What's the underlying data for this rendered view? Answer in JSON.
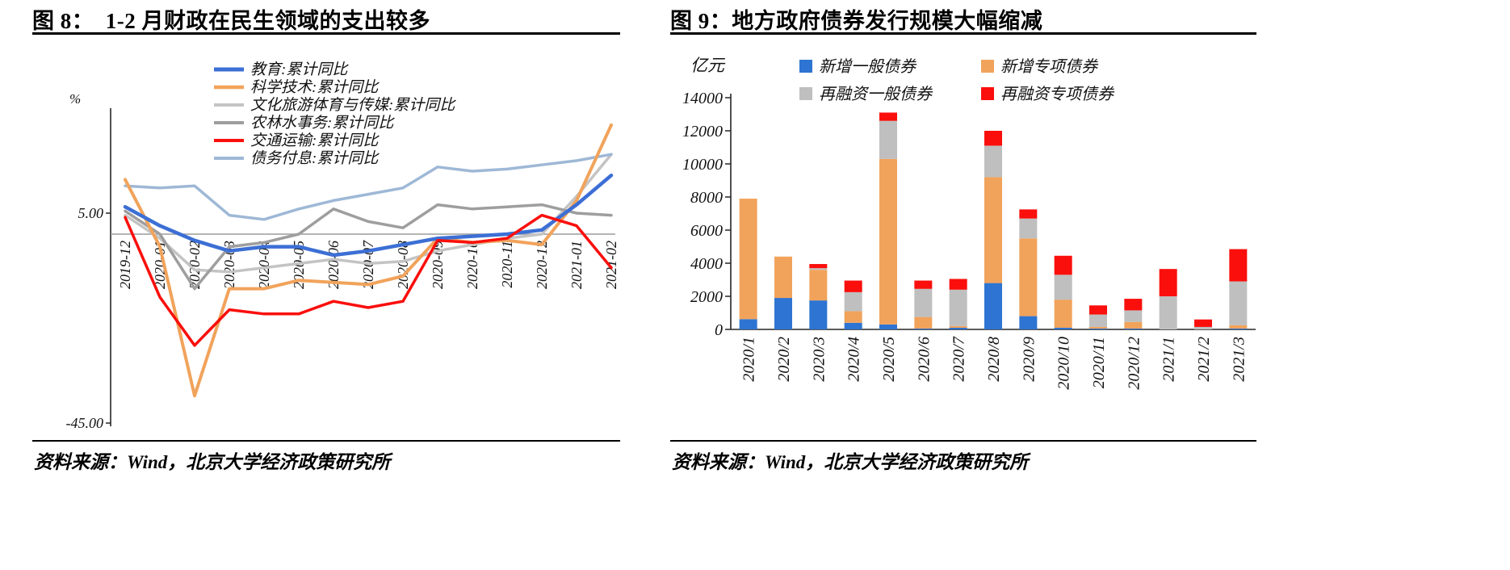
{
  "panels": {
    "left": {
      "title": "图 8：  1-2 月财政在民生领域的支出较多",
      "source": "资料来源：Wind，北京大学经济政策研究所"
    },
    "right": {
      "title": "图 9：地方政府债券发行规模大幅缩减",
      "source": "资料来源：Wind，北京大学经济政策研究所"
    }
  },
  "chart_data": [
    {
      "type": "line",
      "title": "1-2 月财政在民生领域的支出较多",
      "ylabel": "%",
      "ylim": [
        -45,
        30
      ],
      "grid": false,
      "legend_position": "top",
      "yticks": [
        {
          "label": "5.00",
          "value": 5
        },
        {
          "label": "-45.00",
          "value": -45
        }
      ],
      "x": [
        "2019-12",
        "2020-01",
        "2020-02",
        "2020-03",
        "2020-04",
        "2020-05",
        "2020-06",
        "2020-07",
        "2020-08",
        "2020-09",
        "2020-10",
        "2020-11",
        "2020-12",
        "2021-01",
        "2021-02"
      ],
      "draw_order": [
        2,
        3,
        5,
        1,
        0,
        4
      ],
      "series": [
        {
          "name": "教育:累计同比",
          "color": "#3C6FD5",
          "width": 4.5,
          "values": [
            6.5,
            2,
            -1.5,
            -4,
            -3,
            -3,
            -5,
            -4,
            -2.5,
            -1,
            -0.5,
            0,
            1,
            7,
            14
          ]
        },
        {
          "name": "科学技术:累计同比",
          "color": "#F1A35B",
          "width": 4,
          "values": [
            13,
            -3,
            -38.5,
            -13,
            -13,
            -11,
            -11.5,
            -12,
            -10,
            -1,
            -2,
            -1.5,
            -2.5,
            8,
            26
          ]
        },
        {
          "name": "文化旅游体育与传媒:累计同比",
          "color": "#C4C4C4",
          "width": 3.5,
          "values": [
            4.5,
            -1,
            -8.5,
            -9,
            -8,
            -7,
            -6,
            -7,
            -6.5,
            -4,
            -2.5,
            -1,
            0,
            9,
            19
          ]
        },
        {
          "name": "农林水事务:累计同比",
          "color": "#9E9E9E",
          "width": 3.5,
          "values": [
            5.5,
            0,
            -13,
            -3,
            -2,
            0,
            6,
            3,
            1.5,
            7,
            6,
            6.5,
            7,
            5,
            4.5
          ]
        },
        {
          "name": "交通运输:累计同比",
          "color": "#FA0F0C",
          "width": 3.5,
          "values": [
            4,
            -15,
            -26.5,
            -18,
            -19,
            -19,
            -16,
            -17.5,
            -16,
            -1.5,
            -2,
            -1,
            4.5,
            2,
            -8
          ]
        },
        {
          "name": "债务付息:累计同比",
          "color": "#9EB8D6",
          "width": 3.5,
          "values": [
            11.5,
            11,
            11.5,
            4.5,
            3.5,
            6,
            8,
            9.5,
            11,
            16,
            15,
            15.5,
            16.5,
            17.5,
            19
          ]
        }
      ]
    },
    {
      "type": "stacked_bar",
      "title": "地方政府债券发行规模大幅缩减",
      "ylabel": "亿元",
      "ylim": [
        0,
        14000
      ],
      "yticks": [
        0,
        2000,
        4000,
        6000,
        8000,
        10000,
        12000,
        14000
      ],
      "grid": false,
      "legend_position": "top",
      "categories": [
        "2020/1",
        "2020/2",
        "2020/3",
        "2020/4",
        "2020/5",
        "2020/6",
        "2020/7",
        "2020/8",
        "2020/9",
        "2020/10",
        "2020/11",
        "2020/12",
        "2021/1",
        "2021/2",
        "2021/3"
      ],
      "series": [
        {
          "name": "新增一般债券",
          "color": "#2E74D2",
          "values": [
            620,
            1900,
            1750,
            400,
            300,
            50,
            100,
            2800,
            800,
            100,
            50,
            50,
            0,
            0,
            50
          ]
        },
        {
          "name": "新增专项债券",
          "color": "#F1A35B",
          "values": [
            7280,
            2500,
            1850,
            700,
            10000,
            700,
            100,
            6400,
            4700,
            1700,
            100,
            400,
            0,
            0,
            200
          ]
        },
        {
          "name": "再融资一般债券",
          "color": "#BFBFBF",
          "values": [
            0,
            0,
            100,
            1150,
            2300,
            1700,
            2200,
            1900,
            1200,
            1500,
            750,
            700,
            2000,
            150,
            2650
          ]
        },
        {
          "name": "再融资专项债券",
          "color": "#FA0F0C",
          "values": [
            0,
            0,
            250,
            700,
            500,
            500,
            650,
            900,
            550,
            1150,
            550,
            700,
            1650,
            450,
            1950
          ]
        }
      ]
    }
  ]
}
